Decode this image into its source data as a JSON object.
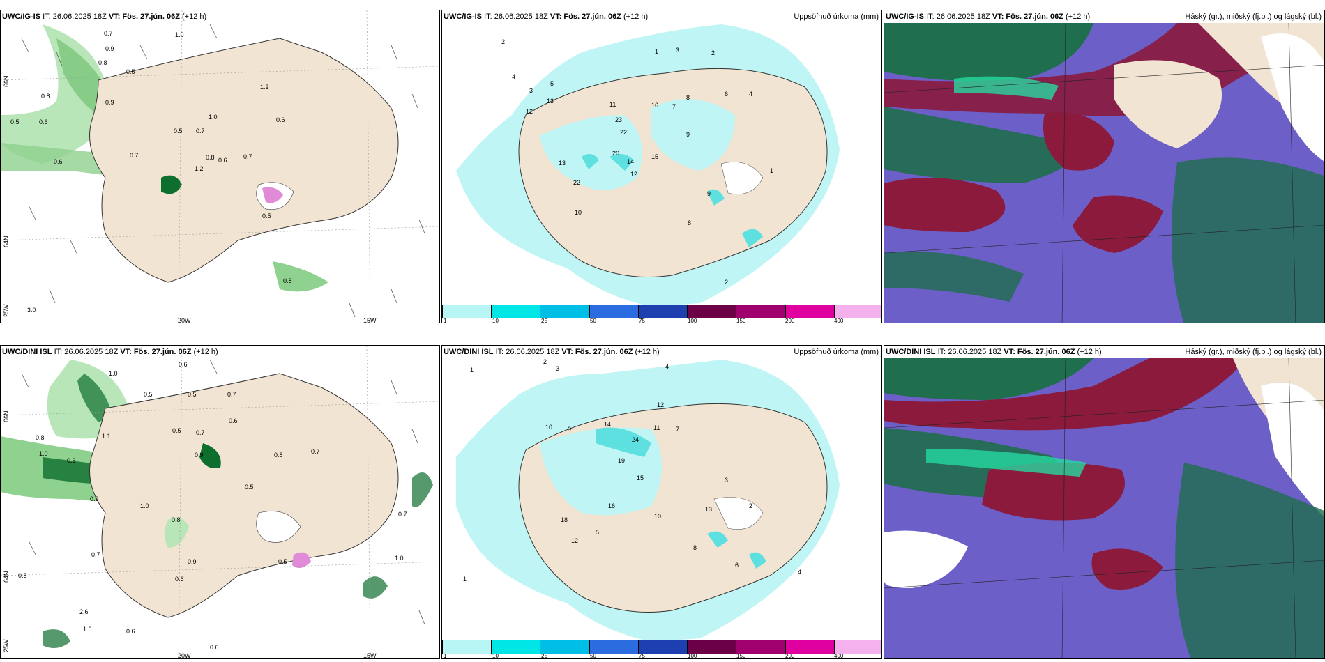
{
  "panels": [
    {
      "model": "UWC/IG-IS",
      "it": "IT: 26.06.2025 18Z",
      "vt": "VT: Fös. 27.jún. 06Z",
      "lead": "(+12 h)",
      "title": ""
    },
    {
      "model": "UWC/IG-IS",
      "it": "IT: 26.06.2025 18Z",
      "vt": "VT: Fös. 27.jún. 06Z",
      "lead": "(+12 h)",
      "title": "Uppsöfnuð úrkoma (mm)"
    },
    {
      "model": "UWC/IG-IS",
      "it": "IT: 26.06.2025 18Z",
      "vt": "VT: Fös. 27.jún. 06Z",
      "lead": "(+12 h)",
      "title": "Háský (gr.), miðský (fj.bl.) og lágský (bl.)"
    },
    {
      "model": "UWC/DINI ISL",
      "it": "IT: 26.06.2025 18Z",
      "vt": "VT: Fös. 27.jún. 06Z",
      "lead": "(+12 h)",
      "title": ""
    },
    {
      "model": "UWC/DINI ISL",
      "it": "IT: 26.06.2025 18Z",
      "vt": "VT: Fös. 27.jún. 06Z",
      "lead": "(+12 h)",
      "title": "Uppsöfnuð úrkoma (mm)"
    },
    {
      "model": "UWC/DINI ISL",
      "it": "IT: 26.06.2025 18Z",
      "vt": "VT: Fös. 27.jún. 06Z",
      "lead": "(+12 h)",
      "title": "Háský (gr.), miðský (fj.bl.) og lágský (bl.)"
    }
  ],
  "grid_labels": {
    "lat66": "66N",
    "lat64": "64N",
    "lon25": "25W",
    "lon20": "20W",
    "lon15": "15W"
  },
  "precip_scale": {
    "ticks": [
      "1",
      "10",
      "25",
      "50",
      "75",
      "100",
      "150",
      "200",
      "400"
    ],
    "colors": [
      "#b8f5f5",
      "#00e5e5",
      "#00bfe6",
      "#2b6de0",
      "#1d3fb0",
      "#6b0047",
      "#a0006e",
      "#e000a0",
      "#f5b0ee"
    ]
  },
  "colors": {
    "land": "#f2e4d2",
    "precip_light": "#bff5f5",
    "precip_mid": "#5fe0e0",
    "green_light": "#b8e6b8",
    "green_dark": "#0d6e2e",
    "cloud_high": "#6c5fc7",
    "cloud_mid": "#8b1a3c",
    "cloud_low": "#1f6e4d"
  },
  "wind_labels_top": [
    "0.7",
    "1.0",
    "0.9",
    "0.8",
    "0.5",
    "0.8",
    "1.2",
    "0.5",
    "0.6",
    "0.6",
    "0.5",
    "0.7",
    "0.6",
    "1.0",
    "0.9",
    "0.7",
    "1.2",
    "0.8",
    "0.6",
    "0.7",
    "0.5",
    "0.8",
    "3.0"
  ],
  "wind_labels_bottom": [
    "0.6",
    "1.0",
    "0.5",
    "0.5",
    "0.7",
    "0.8",
    "0.6",
    "1.1",
    "0.5",
    "0.7",
    "0.8",
    "0.7",
    "1.0",
    "0.9",
    "0.6",
    "0.9",
    "1.0",
    "0.5",
    "0.8",
    "0.7",
    "0.5",
    "0.7",
    "1.0",
    "0.6",
    "0.9",
    "2.6",
    "1.6",
    "0.6",
    "0.8",
    "0.6"
  ],
  "precip_labels_top": [
    "2",
    "1",
    "3",
    "2",
    "4",
    "3",
    "5",
    "8",
    "13",
    "12",
    "11",
    "16",
    "7",
    "9",
    "23",
    "22",
    "20",
    "15",
    "14",
    "12",
    "10",
    "13",
    "22",
    "9",
    "8",
    "6",
    "4",
    "2",
    "1"
  ],
  "precip_labels_bottom": [
    "1",
    "2",
    "3",
    "4",
    "12",
    "10",
    "9",
    "7",
    "14",
    "24",
    "19",
    "15",
    "16",
    "13",
    "10",
    "11",
    "5",
    "3",
    "2",
    "18",
    "12",
    "8",
    "6",
    "4",
    "1"
  ]
}
